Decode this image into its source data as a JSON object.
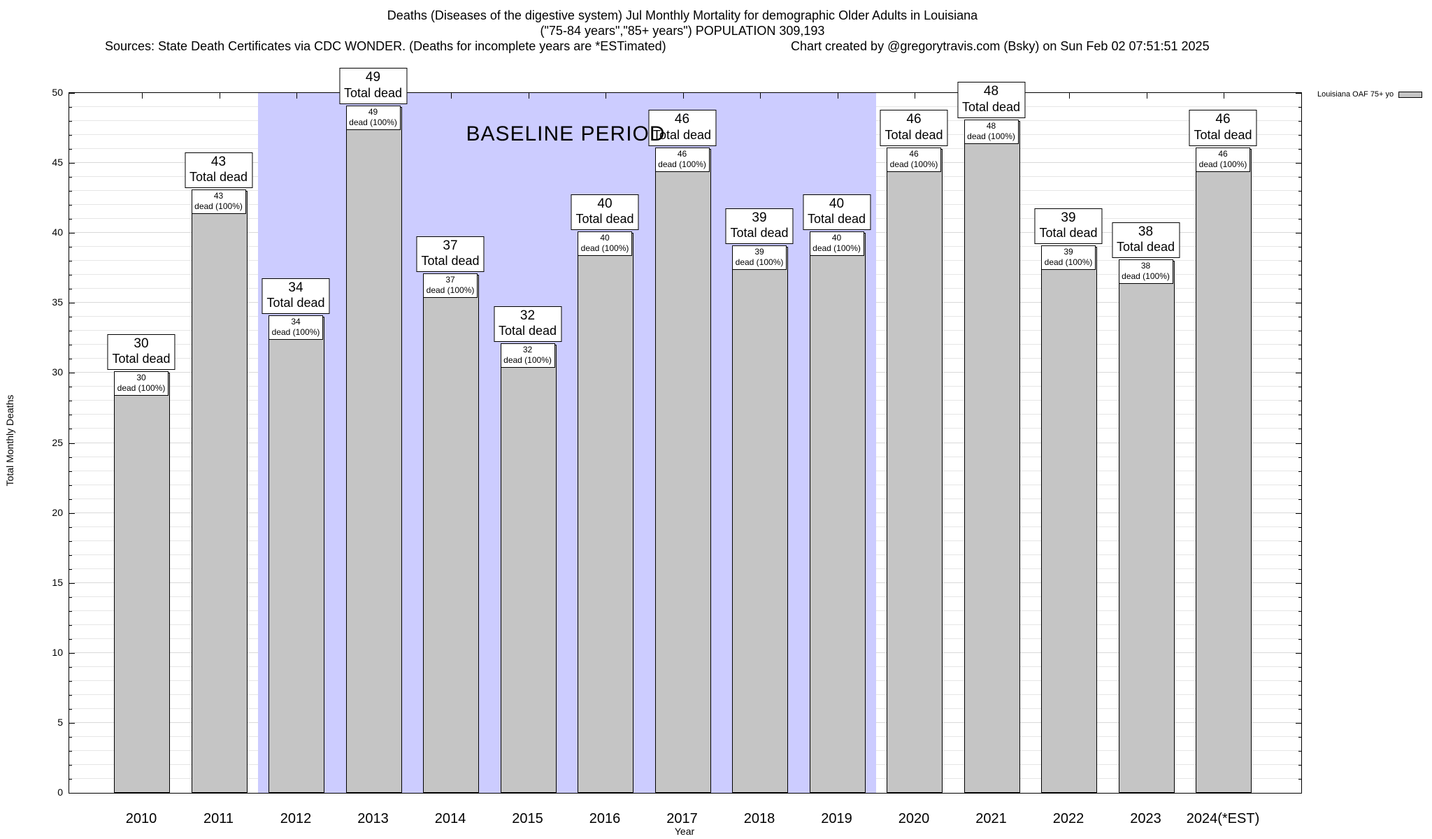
{
  "title": {
    "line1": "Deaths (Diseases of the digestive system) Jul Monthly Mortality for demographic Older Adults in Louisiana",
    "line2": "(\"75-84 years\",\"85+ years\") POPULATION 309,193",
    "sources": "Sources: State Death Certificates via CDC WONDER. (Deaths for incomplete years are *ESTimated)",
    "credit": "Chart created by @gregorytravis.com (Bsky) on Sun Feb 02 07:51:51 2025"
  },
  "legend": {
    "label": "Louisiana OAF 75+ yo"
  },
  "chart_data": {
    "type": "bar",
    "title": "Deaths (Diseases of the digestive system) Jul Monthly Mortality for demographic Older Adults in Louisiana",
    "xlabel": "Year",
    "ylabel": "Total Monthly Deaths",
    "ylim": [
      0,
      50
    ],
    "yticks": [
      0,
      5,
      10,
      15,
      20,
      25,
      30,
      35,
      40,
      45,
      50
    ],
    "grid": "horizontal minor every 1, major every 5",
    "legend_position": "top-right-outside",
    "categories": [
      "2010",
      "2011",
      "2012",
      "2013",
      "2014",
      "2015",
      "2016",
      "2017",
      "2018",
      "2019",
      "2020",
      "2021",
      "2022",
      "2023",
      "2024(*EST)"
    ],
    "values": [
      30,
      43,
      34,
      49,
      37,
      32,
      40,
      46,
      39,
      40,
      46,
      48,
      39,
      38,
      46
    ],
    "bar_caption": "Total dead",
    "bar_subcaption": "dead (100%)",
    "baseline_period": {
      "label": "BASELINE PERIOD",
      "start_category": "2012",
      "end_category": "2019"
    },
    "colors": {
      "bar_fill": "#c5c5c5",
      "bar_border": "#000000",
      "baseline_fill": "#ccccff",
      "grid_minor": "#e6e6e6",
      "grid_major": "#d9d9d9"
    }
  }
}
